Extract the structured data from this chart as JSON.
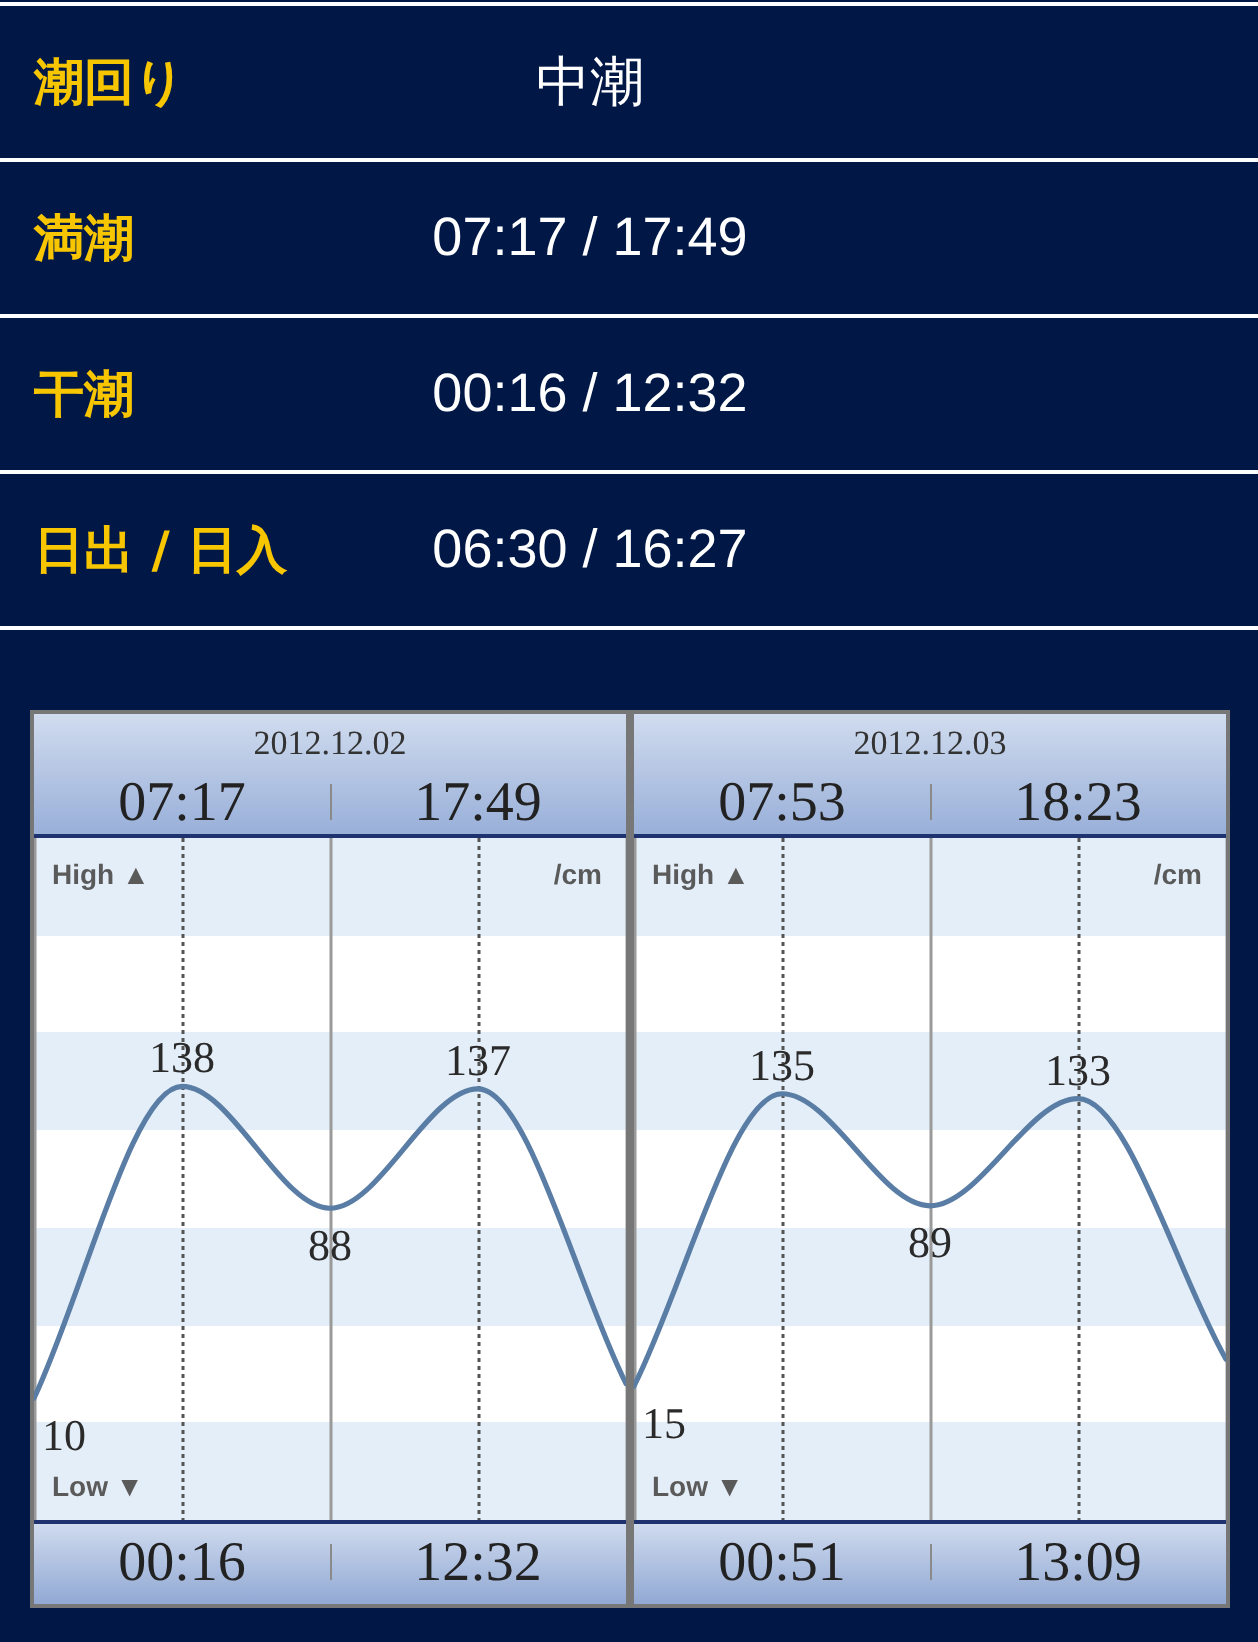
{
  "chart_data": [
    {
      "type": "other",
      "annotations": [
        "潮回り",
        "中潮",
        "満潮",
        "07:17 / 17:49",
        "干潮",
        "00:16 / 12:32",
        "日出 / 日入",
        "06:30 / 16:27"
      ]
    },
    {
      "type": "line",
      "title": "2012.12.02",
      "ylabel": "/cm",
      "annotations": [
        "07:17",
        "17:49",
        "High ▲",
        "Low ▼",
        "00:16",
        "12:32"
      ],
      "categories": [
        null,
        null,
        null,
        null,
        null
      ],
      "values": [
        10,
        138,
        88,
        137,
        16
      ],
      "value_labels": [
        "10",
        "138",
        "88",
        "137",
        null
      ],
      "color": "#5a7da5",
      "ylim": [
        -40,
        240
      ],
      "tick_labels": false,
      "grid": "x"
    },
    {
      "type": "line",
      "title": "2012.12.03",
      "ylabel": "/cm",
      "annotations": [
        "07:53",
        "18:23",
        "High ▲",
        "Low ▼",
        "00:51",
        "13:09"
      ],
      "categories": [
        null,
        null,
        null,
        null,
        null
      ],
      "values": [
        15,
        135,
        89,
        133,
        26
      ],
      "value_labels": [
        "15",
        "135",
        "89",
        "133",
        null
      ],
      "color": "#5a7da5",
      "ylim": [
        -40,
        240
      ],
      "tick_labels": false,
      "grid": "x"
    }
  ]
}
